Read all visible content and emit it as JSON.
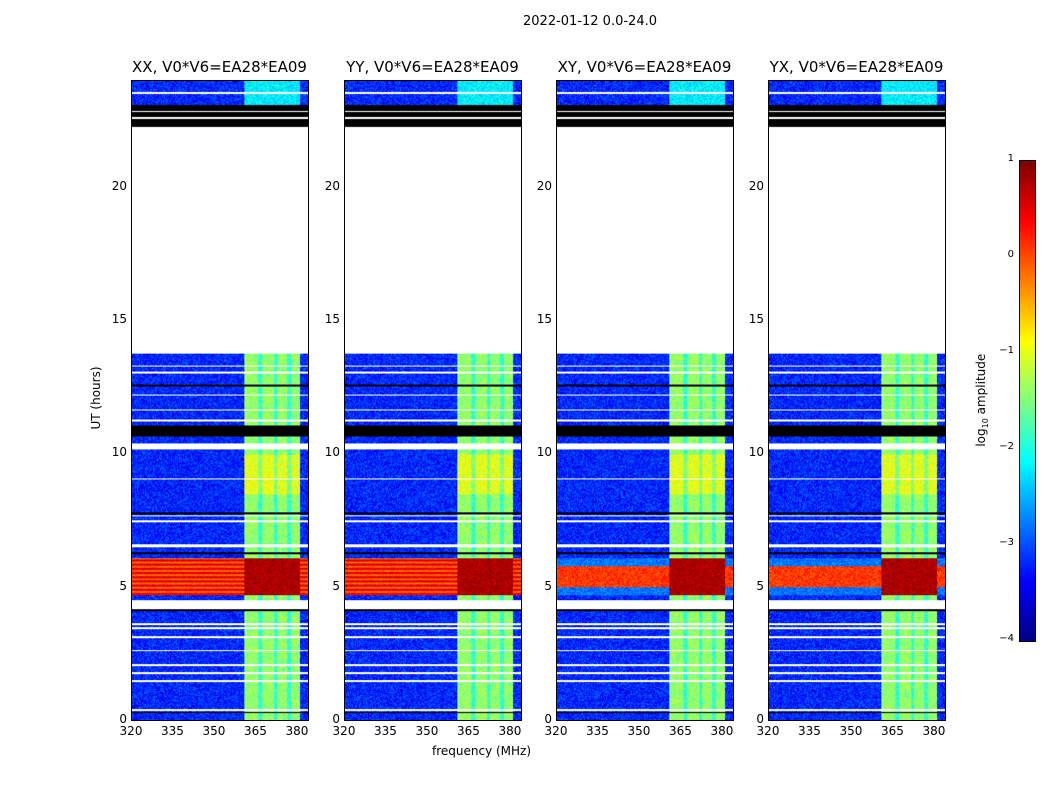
{
  "suptitle": "2022-01-12 0.0-24.0",
  "chart_data": {
    "type": "heatmap",
    "xlabel": "frequency (MHz)",
    "ylabel": "UT (hours)",
    "xlim": [
      320,
      384
    ],
    "ylim": [
      0,
      24
    ],
    "xticks": [
      "320",
      "335",
      "350",
      "365",
      "380"
    ],
    "xtick_values": [
      320,
      335,
      350,
      365,
      380
    ],
    "yticks": [
      "0",
      "5",
      "10",
      "15",
      "20"
    ],
    "ytick_values": [
      0,
      5,
      10,
      15,
      20
    ],
    "panels": [
      {
        "title": "XX, V0*V6=EA28*EA09",
        "strong_band_all_freq": true
      },
      {
        "title": "YY, V0*V6=EA28*EA09",
        "strong_band_all_freq": true
      },
      {
        "title": "XY, V0*V6=EA28*EA09",
        "strong_band_all_freq": false
      },
      {
        "title": "YX, V0*V6=EA28*EA09",
        "strong_band_all_freq": false
      }
    ],
    "colorbar": {
      "label": "log10 amplitude",
      "range": [
        -4,
        1
      ],
      "ticks": [
        "1",
        "0",
        "−1",
        "−2",
        "−3",
        "−4"
      ],
      "tick_values": [
        1,
        0,
        -1,
        -2,
        -3,
        -4
      ],
      "colormap": "jet"
    },
    "background_level": -3.2,
    "rfi_band_mhz": [
      360.5,
      381
    ],
    "rfi_level": -1.4,
    "strong_interval_hours": [
      4.7,
      6.1
    ],
    "strong_level": 0.7,
    "no_data_hours": [
      [
        13.8,
        22.3
      ]
    ],
    "flagged_hours": [
      [
        0.35,
        0.42
      ],
      [
        1.45,
        1.52
      ],
      [
        1.75,
        1.8
      ],
      [
        2.05,
        2.12
      ],
      [
        2.6,
        2.65
      ],
      [
        3.1,
        3.16
      ],
      [
        3.45,
        3.5
      ],
      [
        3.6,
        3.65
      ],
      [
        4.2,
        4.5
      ],
      [
        6.5,
        6.62
      ],
      [
        7.45,
        7.5
      ],
      [
        7.65,
        7.7
      ],
      [
        9.05,
        9.1
      ],
      [
        10.2,
        10.42
      ],
      [
        11.25,
        11.3
      ],
      [
        11.65,
        11.7
      ],
      [
        12.2,
        12.25
      ],
      [
        13.05,
        13.1
      ],
      [
        13.3,
        13.35
      ],
      [
        22.6,
        22.65
      ],
      [
        22.85,
        22.9
      ],
      [
        23.55,
        23.6
      ]
    ],
    "dead_hours": [
      [
        0.28,
        0.32
      ],
      [
        4.12,
        4.18
      ],
      [
        6.25,
        6.3
      ],
      [
        7.75,
        7.82
      ],
      [
        10.65,
        11.1
      ],
      [
        12.55,
        12.62
      ],
      [
        22.3,
        23.1
      ]
    ]
  }
}
